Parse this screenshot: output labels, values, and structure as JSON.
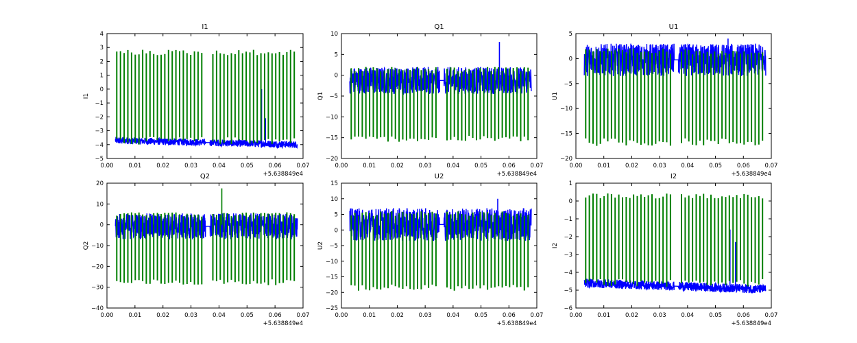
{
  "figure": {
    "x_offset_label": "+5.638849e4",
    "series_colors": [
      "#0000ff",
      "#007f00"
    ]
  },
  "chart_data": [
    {
      "type": "line",
      "title": "I1",
      "ylabel": "I1",
      "xlim": [
        0.0,
        0.07
      ],
      "ylim": [
        -5,
        4
      ],
      "xticks": [
        "0.00",
        "0.01",
        "0.02",
        "0.03",
        "0.04",
        "0.05",
        "0.06",
        "0.07"
      ],
      "yticks": [
        -5,
        -4,
        -3,
        -2,
        -1,
        0,
        1,
        2,
        3,
        4
      ],
      "grid": false,
      "gap": [
        0.0352,
        0.0368
      ],
      "series": [
        {
          "color": "#0000ff",
          "x_range": [
            0.003,
            0.068
          ],
          "band": [
            -4.0,
            -3.5
          ],
          "trend": [
            -3.7,
            -4.0
          ],
          "spikes": [
            [
              0.0552,
              0.0
            ],
            [
              0.0566,
              -2.1
            ]
          ]
        },
        {
          "color": "#007f00",
          "x_range": [
            0.003,
            0.068
          ],
          "pulse_period": 0.00132,
          "pulse_top": 2.85,
          "pulse_base": -4.0
        }
      ]
    },
    {
      "type": "line",
      "title": "Q1",
      "ylabel": "Q1",
      "xlim": [
        0.0,
        0.07
      ],
      "ylim": [
        -20,
        10
      ],
      "xticks": [
        "0.00",
        "0.01",
        "0.02",
        "0.03",
        "0.04",
        "0.05",
        "0.06",
        "0.07"
      ],
      "yticks": [
        -20,
        -15,
        -10,
        -5,
        0,
        5,
        10
      ],
      "grid": false,
      "gap": [
        0.0352,
        0.0368
      ],
      "series": [
        {
          "color": "#0000ff",
          "x_range": [
            0.003,
            0.068
          ],
          "band": [
            -4.5,
            2.0
          ],
          "trend": [
            0,
            0
          ],
          "spikes": [
            [
              0.0566,
              8.0
            ]
          ]
        },
        {
          "color": "#007f00",
          "x_range": [
            0.003,
            0.068
          ],
          "pulse_period": 0.00132,
          "pulse_top": 2.0,
          "pulse_base": -16.0
        }
      ]
    },
    {
      "type": "line",
      "title": "U1",
      "ylabel": "U1",
      "xlim": [
        0.0,
        0.07
      ],
      "ylim": [
        -20,
        5
      ],
      "xticks": [
        "0.00",
        "0.01",
        "0.02",
        "0.03",
        "0.04",
        "0.05",
        "0.06",
        "0.07"
      ],
      "yticks": [
        -20,
        -15,
        -10,
        -5,
        0,
        5
      ],
      "grid": false,
      "gap": [
        0.0352,
        0.0368
      ],
      "series": [
        {
          "color": "#0000ff",
          "x_range": [
            0.003,
            0.068
          ],
          "band": [
            -3.5,
            3.0
          ],
          "trend": [
            0,
            0
          ],
          "spikes": [
            [
              0.0545,
              4.0
            ]
          ]
        },
        {
          "color": "#007f00",
          "x_range": [
            0.003,
            0.068
          ],
          "pulse_period": 0.00132,
          "pulse_top": 2.0,
          "pulse_base": -17.5
        }
      ]
    },
    {
      "type": "line",
      "title": "Q2",
      "ylabel": "Q2",
      "xlim": [
        0.0,
        0.07
      ],
      "ylim": [
        -40,
        20
      ],
      "xticks": [
        "0.00",
        "0.01",
        "0.02",
        "0.03",
        "0.04",
        "0.05",
        "0.06",
        "0.07"
      ],
      "yticks": [
        -40,
        -30,
        -20,
        -10,
        0,
        10,
        20
      ],
      "grid": false,
      "gap": [
        0.0352,
        0.0368
      ],
      "series": [
        {
          "color": "#0000ff",
          "x_range": [
            0.003,
            0.068
          ],
          "band": [
            -7.0,
            5.5
          ],
          "trend": [
            0,
            0
          ],
          "spikes": []
        },
        {
          "color": "#007f00",
          "x_range": [
            0.003,
            0.068
          ],
          "pulse_period": 0.00132,
          "pulse_top": 6.0,
          "pulse_base": -29.0,
          "spikes": [
            [
              0.041,
              17.5
            ]
          ]
        }
      ]
    },
    {
      "type": "line",
      "title": "U2",
      "ylabel": "U2",
      "xlim": [
        0.0,
        0.07
      ],
      "ylim": [
        -25,
        15
      ],
      "xticks": [
        "0.00",
        "0.01",
        "0.02",
        "0.03",
        "0.04",
        "0.05",
        "0.06",
        "0.07"
      ],
      "yticks": [
        -25,
        -20,
        -15,
        -10,
        -5,
        0,
        5,
        10,
        15
      ],
      "grid": false,
      "gap": [
        0.0352,
        0.0368
      ],
      "series": [
        {
          "color": "#0000ff",
          "x_range": [
            0.003,
            0.068
          ],
          "band": [
            -3.5,
            7.0
          ],
          "trend": [
            0,
            0
          ],
          "spikes": [
            [
              0.056,
              10.0
            ]
          ]
        },
        {
          "color": "#007f00",
          "x_range": [
            0.003,
            0.068
          ],
          "pulse_period": 0.00132,
          "pulse_top": 6.0,
          "pulse_base": -19.5
        }
      ]
    },
    {
      "type": "line",
      "title": "I2",
      "ylabel": "I2",
      "xlim": [
        0.0,
        0.07
      ],
      "ylim": [
        -6,
        1
      ],
      "xticks": [
        "0.00",
        "0.01",
        "0.02",
        "0.03",
        "0.04",
        "0.05",
        "0.06",
        "0.07"
      ],
      "yticks": [
        -6,
        -5,
        -4,
        -3,
        -2,
        -1,
        0,
        1
      ],
      "grid": false,
      "gap": [
        0.0352,
        0.0368
      ],
      "series": [
        {
          "color": "#0000ff",
          "x_range": [
            0.003,
            0.068
          ],
          "band": [
            -5.0,
            -4.5
          ],
          "trend": [
            -4.6,
            -4.95
          ],
          "spikes": [
            [
              0.0552,
              -1.6
            ],
            [
              0.0572,
              -2.3
            ]
          ]
        },
        {
          "color": "#007f00",
          "x_range": [
            0.003,
            0.068
          ],
          "pulse_period": 0.00132,
          "pulse_top": 0.45,
          "pulse_base": -4.8
        }
      ]
    }
  ]
}
